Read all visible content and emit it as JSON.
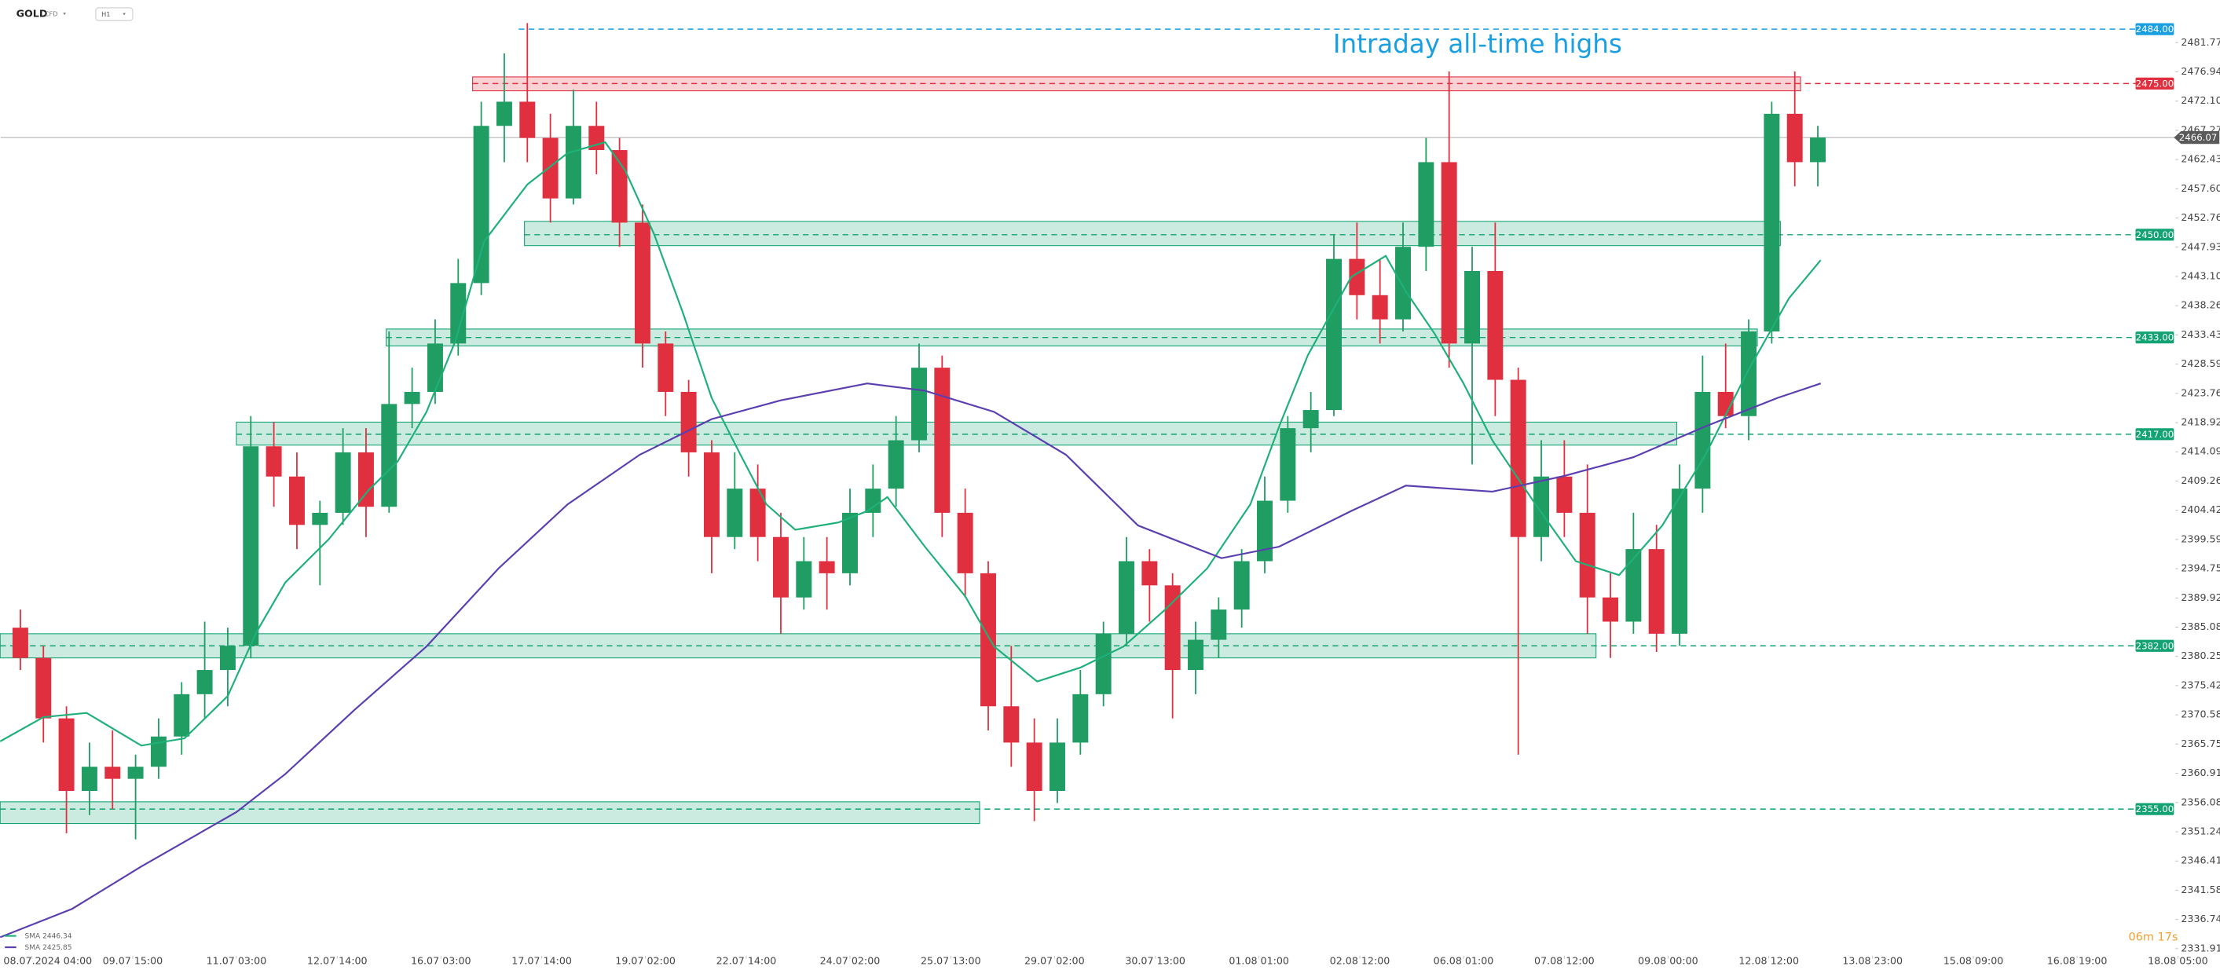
{
  "chart_data": {
    "type": "candlestick",
    "symbol": "GOLD",
    "instrument": "CFD",
    "timeframe": "H1",
    "annotation": "Intraday all-time highs",
    "annotation_color": "#1a9fe0",
    "countdown": "06m 17s",
    "up_color": "#1f9d63",
    "down_color": "#e0303f",
    "xlim": [
      -10.85,
      759.4
    ],
    "ylim": [
      2330.26,
      2488.82
    ],
    "xticks": [
      {
        "value": 0,
        "label": "08.07.2024 04:00"
      },
      {
        "value": 35,
        "label": "09.07 15:00"
      },
      {
        "value": 71,
        "label": "11.07 03:00"
      },
      {
        "value": 106,
        "label": "12.07 14:00"
      },
      {
        "value": 142,
        "label": "16.07 03:00"
      },
      {
        "value": 177,
        "label": "17.07 14:00"
      },
      {
        "value": 213,
        "label": "19.07 02:00"
      },
      {
        "value": 248,
        "label": "22.07 14:00"
      },
      {
        "value": 284,
        "label": "24.07 02:00"
      },
      {
        "value": 319,
        "label": "25.07 13:00"
      },
      {
        "value": 355,
        "label": "29.07 02:00"
      },
      {
        "value": 390,
        "label": "30.07 13:00"
      },
      {
        "value": 426,
        "label": "01.08 01:00"
      },
      {
        "value": 461,
        "label": "02.08 12:00"
      },
      {
        "value": 497,
        "label": "06.08 01:00"
      },
      {
        "value": 532,
        "label": "07.08 12:00"
      },
      {
        "value": 568,
        "label": "09.08 00:00"
      },
      {
        "value": 603,
        "label": "12.08 12:00"
      },
      {
        "value": 639,
        "label": "13.08 23:00"
      },
      {
        "value": 674,
        "label": "15.08 09:00"
      },
      {
        "value": 710,
        "label": "16.08 19:00"
      },
      {
        "value": 745,
        "label": "18.08 05:00"
      }
    ],
    "yticks": [
      2481.77,
      2476.94,
      {
        "value": 2472.1,
        "label": "2472.10"
      },
      2467.27,
      2462.43,
      {
        "value": 2457.6,
        "label": "2457.60"
      },
      2452.76,
      2447.93,
      {
        "value": 2443.1,
        "label": "2443.10"
      },
      2438.26,
      2433.43,
      2428.59,
      2423.76,
      2418.92,
      2414.09,
      2409.26,
      2404.42,
      2399.59,
      2394.75,
      2389.92,
      2385.08,
      2380.25,
      2375.42,
      2370.58,
      2365.75,
      2360.91,
      2356.08,
      2351.24,
      2346.41,
      2341.58,
      2336.74,
      2331.91
    ],
    "candles": {
      "x": [
        -8,
        0,
        8,
        16,
        24,
        32,
        40,
        48,
        56,
        64,
        72,
        80,
        88,
        96,
        104,
        112,
        120,
        128,
        136,
        144,
        152,
        160,
        168,
        176,
        184,
        192,
        200,
        208,
        216,
        224,
        232,
        240,
        248,
        256,
        264,
        272,
        280,
        288,
        296,
        304,
        312,
        320,
        328,
        336,
        344,
        352,
        360,
        368,
        376,
        384,
        392,
        400,
        408,
        416,
        424,
        432,
        440,
        448,
        456,
        464,
        472,
        480,
        488,
        496,
        504,
        512,
        520,
        528,
        536,
        544,
        552,
        560,
        568,
        576,
        584,
        592,
        600,
        608,
        616
      ],
      "open": [
        2385,
        2380,
        2370,
        2358,
        2362,
        2360,
        2362,
        2367,
        2374,
        2378,
        2382,
        2415,
        2410,
        2402,
        2404,
        2414,
        2405,
        2422,
        2424,
        2432,
        2442,
        2468,
        2472,
        2466,
        2456,
        2468,
        2464,
        2452,
        2432,
        2424,
        2414,
        2400,
        2408,
        2400,
        2390,
        2396,
        2394,
        2404,
        2408,
        2416,
        2428,
        2404,
        2394,
        2372,
        2366,
        2358,
        2366,
        2374,
        2384,
        2396,
        2392,
        2378,
        2383,
        2388,
        2396,
        2406,
        2418,
        2421,
        2446,
        2440,
        2436,
        2448,
        2462,
        2432,
        2444,
        2426,
        2400,
        2410,
        2404,
        2390,
        2386,
        2398,
        2384,
        2408,
        2424,
        2420,
        2434,
        2470,
        2462
      ],
      "high": [
        2388,
        2382,
        2372,
        2366,
        2368,
        2364,
        2370,
        2376,
        2386,
        2385,
        2420,
        2419,
        2414,
        2406,
        2418,
        2418,
        2434,
        2428,
        2436,
        2446,
        2472,
        2480,
        2485,
        2470,
        2474,
        2472,
        2466,
        2455,
        2434,
        2426,
        2416,
        2414,
        2412,
        2404,
        2400,
        2400,
        2408,
        2412,
        2420,
        2432,
        2430,
        2408,
        2396,
        2382,
        2370,
        2370,
        2378,
        2386,
        2400,
        2398,
        2394,
        2386,
        2390,
        2398,
        2410,
        2420,
        2424,
        2450,
        2452,
        2446,
        2452,
        2466,
        2477,
        2448,
        2452,
        2428,
        2416,
        2416,
        2412,
        2394,
        2404,
        2402,
        2412,
        2430,
        2432,
        2436,
        2472,
        2477,
        2468
      ],
      "low": [
        2378,
        2366,
        2351,
        2354,
        2355,
        2350,
        2360,
        2364,
        2370,
        2372,
        2380,
        2405,
        2398,
        2392,
        2402,
        2400,
        2404,
        2418,
        2422,
        2430,
        2440,
        2462,
        2462,
        2452,
        2455,
        2460,
        2448,
        2428,
        2420,
        2410,
        2394,
        2398,
        2396,
        2384,
        2388,
        2388,
        2392,
        2400,
        2405,
        2414,
        2400,
        2390,
        2368,
        2362,
        2353,
        2356,
        2364,
        2372,
        2382,
        2386,
        2370,
        2374,
        2380,
        2385,
        2394,
        2404,
        2414,
        2420,
        2436,
        2432,
        2434,
        2444,
        2428,
        2412,
        2420,
        2364,
        2396,
        2400,
        2384,
        2380,
        2384,
        2381,
        2382,
        2404,
        2418,
        2416,
        2432,
        2458,
        2458
      ],
      "close": [
        2380,
        2370,
        2358,
        2362,
        2360,
        2362,
        2367,
        2374,
        2378,
        2382,
        2415,
        2410,
        2402,
        2404,
        2414,
        2405,
        2422,
        2424,
        2432,
        2442,
        2468,
        2472,
        2466,
        2456,
        2468,
        2464,
        2452,
        2432,
        2424,
        2414,
        2400,
        2408,
        2400,
        2390,
        2396,
        2394,
        2404,
        2408,
        2416,
        2428,
        2404,
        2394,
        2372,
        2366,
        2358,
        2366,
        2374,
        2384,
        2396,
        2392,
        2378,
        2383,
        2388,
        2396,
        2406,
        2418,
        2421,
        2446,
        2440,
        2436,
        2448,
        2462,
        2432,
        2444,
        2426,
        2400,
        2410,
        2404,
        2390,
        2386,
        2398,
        2384,
        2408,
        2424,
        2420,
        2434,
        2470,
        2462,
        2466.07
      ]
    },
    "sma": [
      {
        "name": "SMA",
        "last": 2446.34,
        "color": "#1fb07a",
        "x": [
          -11,
          4,
          19,
          38,
          53,
          68,
          78,
          88,
          103,
          117,
          127,
          137,
          147,
          157,
          172,
          186,
          199,
          206,
          216,
          226,
          236,
          246,
          255,
          265,
          280,
          290,
          297,
          310,
          324,
          334,
          349,
          364,
          379,
          393,
          408,
          423,
          433,
          443,
          458,
          470,
          477,
          487,
          497,
          507,
          522,
          536,
          551,
          566,
          581,
          596,
          610,
          621
        ],
        "values": [
          2366.2,
          2370.2,
          2370.9,
          2365.5,
          2366.7,
          2373.7,
          2384.3,
          2392.5,
          2399.6,
          2407.8,
          2412.5,
          2420.7,
          2432.4,
          2448.9,
          2458.3,
          2463.5,
          2465.3,
          2460.6,
          2450.1,
          2437.1,
          2423.0,
          2413.6,
          2405.4,
          2401.2,
          2402.4,
          2404.3,
          2406.6,
          2398.4,
          2390.2,
          2381.9,
          2376.1,
          2378.4,
          2381.9,
          2387.8,
          2394.8,
          2405.4,
          2418.3,
          2430.1,
          2443.0,
          2446.5,
          2440.6,
          2433.6,
          2425.4,
          2416.0,
          2405.4,
          2396.0,
          2393.7,
          2401.9,
          2413.6,
          2427.7,
          2439.5,
          2445.8
        ]
      },
      {
        "name": "SMA",
        "last": 2425.85,
        "color": "#5b3fb0",
        "x": [
          -11,
          14,
          38,
          71,
          88,
          112,
          137,
          162,
          186,
          211,
          236,
          260,
          290,
          310,
          334,
          359,
          384,
          413,
          433,
          458,
          477,
          507,
          532,
          556,
          581,
          606,
          621
        ],
        "values": [
          2333.8,
          2338.5,
          2345.5,
          2354.5,
          2360.8,
          2371.4,
          2381.9,
          2394.8,
          2405.4,
          2413.6,
          2419.5,
          2422.6,
          2425.4,
          2424.2,
          2420.7,
          2413.6,
          2401.9,
          2396.5,
          2398.4,
          2404.3,
          2408.5,
          2407.5,
          2410.1,
          2413.2,
          2418.3,
          2423.0,
          2425.4
        ]
      }
    ],
    "zones": [
      {
        "low": 2473.8,
        "high": 2476.1,
        "start": 153,
        "end": 614,
        "color": "#e0303f"
      },
      {
        "low": 2448.2,
        "high": 2452.2,
        "start": 171,
        "end": 607,
        "color": "#13a372"
      },
      {
        "low": 2431.6,
        "high": 2434.4,
        "start": 123,
        "end": 599,
        "color": "#13a372"
      },
      {
        "low": 2415.2,
        "high": 2419.0,
        "start": 71,
        "end": 571,
        "color": "#13a372"
      },
      {
        "low": 2380.0,
        "high": 2384.0,
        "start": -11,
        "end": 543,
        "color": "#13a372"
      },
      {
        "low": 2352.6,
        "high": 2356.2,
        "start": -11,
        "end": 329,
        "color": "#13a372"
      }
    ],
    "levels": [
      {
        "price": {
          "value": 2484,
          "label": "2484.00"
        },
        "start": 169,
        "color": "#1a9fe0"
      },
      {
        "price": {
          "value": 2475,
          "label": "2475.00"
        },
        "start": 153,
        "color": "#e0303f"
      },
      {
        "price": {
          "value": 2450,
          "label": "2450.00"
        },
        "start": 171,
        "color": "#13a372"
      },
      {
        "price": {
          "value": 2433,
          "label": "2433.00"
        },
        "start": 123,
        "color": "#13a372"
      },
      {
        "price": {
          "value": 2417,
          "label": "2417.00"
        },
        "start": 71,
        "color": "#13a372"
      },
      {
        "price": {
          "value": 2382,
          "label": "2382.00"
        },
        "start": -11,
        "color": "#13a372"
      },
      {
        "price": {
          "value": 2355,
          "label": "2355.00"
        },
        "start": -11,
        "color": "#13a372"
      }
    ],
    "last_price": 2466.07,
    "last_price_color": "#5a5a5a"
  }
}
